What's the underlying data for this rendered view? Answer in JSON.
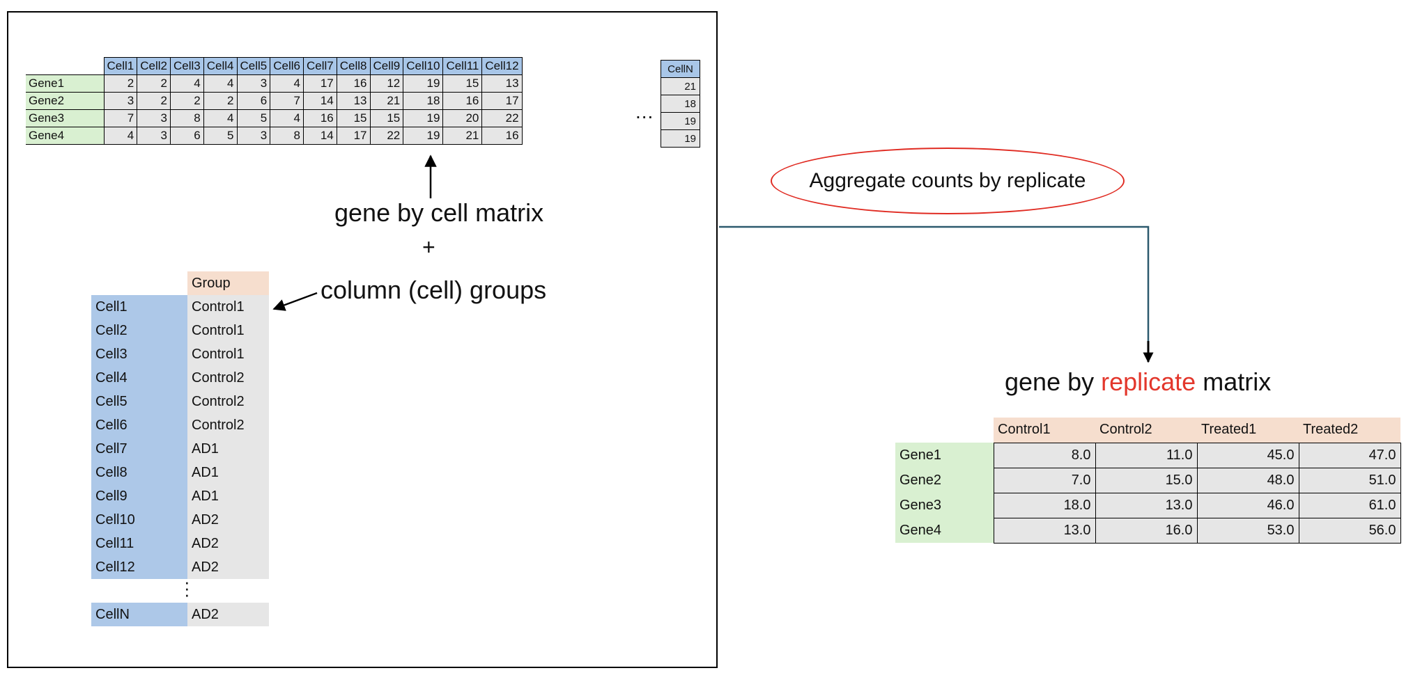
{
  "gene_cell_matrix": {
    "columns": [
      "Cell1",
      "Cell2",
      "Cell3",
      "Cell4",
      "Cell5",
      "Cell6",
      "Cell7",
      "Cell8",
      "Cell9",
      "Cell10",
      "Cell11",
      "Cell12"
    ],
    "rows": [
      {
        "gene": "Gene1",
        "values": [
          "2",
          "2",
          "4",
          "4",
          "3",
          "4",
          "17",
          "16",
          "12",
          "19",
          "15",
          "13"
        ]
      },
      {
        "gene": "Gene2",
        "values": [
          "3",
          "2",
          "2",
          "2",
          "6",
          "7",
          "14",
          "13",
          "21",
          "18",
          "16",
          "17"
        ]
      },
      {
        "gene": "Gene3",
        "values": [
          "7",
          "3",
          "8",
          "4",
          "5",
          "4",
          "16",
          "15",
          "15",
          "19",
          "20",
          "22"
        ]
      },
      {
        "gene": "Gene4",
        "values": [
          "4",
          "3",
          "6",
          "5",
          "3",
          "8",
          "14",
          "17",
          "22",
          "19",
          "21",
          "16"
        ]
      }
    ],
    "ellipsis": "...",
    "extra_column": {
      "header": "CellN",
      "values": [
        "21",
        "18",
        "19",
        "19"
      ]
    }
  },
  "labels": {
    "matrix": "gene by cell matrix",
    "plus": "+",
    "groups": "column (cell) groups",
    "aggregate": "Aggregate counts by replicate",
    "replicate_prefix": "gene by ",
    "replicate_highlight": "replicate",
    "replicate_suffix": " matrix"
  },
  "group_table": {
    "header": "Group",
    "rows": [
      {
        "cell": "Cell1",
        "group": "Control1"
      },
      {
        "cell": "Cell2",
        "group": "Control1"
      },
      {
        "cell": "Cell3",
        "group": "Control1"
      },
      {
        "cell": "Cell4",
        "group": "Control2"
      },
      {
        "cell": "Cell5",
        "group": "Control2"
      },
      {
        "cell": "Cell6",
        "group": "Control2"
      },
      {
        "cell": "Cell7",
        "group": "AD1"
      },
      {
        "cell": "Cell8",
        "group": "AD1"
      },
      {
        "cell": "Cell9",
        "group": "AD1"
      },
      {
        "cell": "Cell10",
        "group": "AD2"
      },
      {
        "cell": "Cell11",
        "group": "AD2"
      },
      {
        "cell": "Cell12",
        "group": "AD2"
      }
    ],
    "last_row": {
      "cell": "CellN",
      "group": "AD2"
    }
  },
  "replicate_matrix": {
    "columns": [
      "Control1",
      "Control2",
      "Treated1",
      "Treated2"
    ],
    "rows": [
      {
        "gene": "Gene1",
        "values": [
          "8.0",
          "11.0",
          "45.0",
          "47.0"
        ]
      },
      {
        "gene": "Gene2",
        "values": [
          "7.0",
          "15.0",
          "48.0",
          "51.0"
        ]
      },
      {
        "gene": "Gene3",
        "values": [
          "18.0",
          "13.0",
          "46.0",
          "61.0"
        ]
      },
      {
        "gene": "Gene4",
        "values": [
          "13.0",
          "16.0",
          "53.0",
          "56.0"
        ]
      }
    ]
  },
  "colors": {
    "cell_header_blue": "#a8c6e8",
    "gene_green": "#d9f0d1",
    "group_header_peach": "#f6dece",
    "value_gray": "#e6e6e6",
    "ellipse_red": "#e02b22",
    "highlight_red": "#e3372c",
    "connector_teal": "#2c5a6e"
  }
}
